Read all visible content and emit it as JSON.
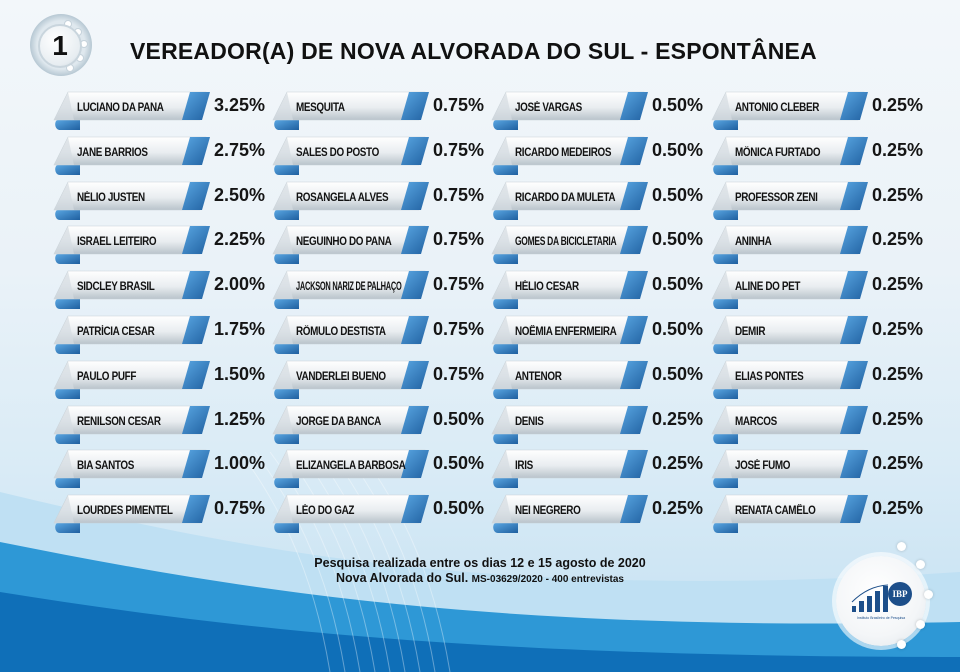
{
  "header": {
    "badge_number": "1",
    "title": "VEREADOR(A) DE NOVA ALVORADA DO SUL - ESPONTÂNEA"
  },
  "columns": [
    [
      {
        "name": "LUCIANO DA PANA",
        "pct": "3.25%"
      },
      {
        "name": "JANE BARRIOS",
        "pct": "2.75%"
      },
      {
        "name": "NÉLIO JUSTEN",
        "pct": "2.50%"
      },
      {
        "name": "ISRAEL LEITEIRO",
        "pct": "2.25%"
      },
      {
        "name": "SIDCLEY BRASIL",
        "pct": "2.00%"
      },
      {
        "name": "PATRÍCIA CESAR",
        "pct": "1.75%"
      },
      {
        "name": "PAULO PUFF",
        "pct": "1.50%"
      },
      {
        "name": "RENILSON CESAR",
        "pct": "1.25%"
      },
      {
        "name": "BIA SANTOS",
        "pct": "1.00%"
      },
      {
        "name": "LOURDES PIMENTEL",
        "pct": "0.75%"
      }
    ],
    [
      {
        "name": "MESQUITA",
        "pct": "0.75%"
      },
      {
        "name": "SALES DO POSTO",
        "pct": "0.75%"
      },
      {
        "name": "ROSANGELA ALVES",
        "pct": "0.75%"
      },
      {
        "name": "NEGUINHO DO PANA",
        "pct": "0.75%"
      },
      {
        "name": "JACKSON NARIZ DE PALHAÇO",
        "pct": "0.75%"
      },
      {
        "name": "RÔMULO DESTISTA",
        "pct": "0.75%"
      },
      {
        "name": "VANDERLEI BUENO",
        "pct": "0.75%"
      },
      {
        "name": "JORGE DA BANCA",
        "pct": "0.50%"
      },
      {
        "name": "ELIZANGELA BARBOSA",
        "pct": "0.50%"
      },
      {
        "name": "LÉO DO GAZ",
        "pct": "0.50%"
      }
    ],
    [
      {
        "name": "JOSÉ VARGAS",
        "pct": "0.50%"
      },
      {
        "name": "RICARDO MEDEIROS",
        "pct": "0.50%"
      },
      {
        "name": "RICARDO DA MULETA",
        "pct": "0.50%"
      },
      {
        "name": "GOMES DA BICICLETARIA",
        "pct": "0.50%"
      },
      {
        "name": "HÉLIO CESAR",
        "pct": "0.50%"
      },
      {
        "name": "NOÊMIA ENFERMEIRA",
        "pct": "0.50%"
      },
      {
        "name": "ANTENOR",
        "pct": "0.50%"
      },
      {
        "name": "DENIS",
        "pct": "0.25%"
      },
      {
        "name": "IRIS",
        "pct": "0.25%"
      },
      {
        "name": "NEI NEGRERO",
        "pct": "0.25%"
      }
    ],
    [
      {
        "name": "ANTONIO CLEBER",
        "pct": "0.25%"
      },
      {
        "name": "MÔNICA FURTADO",
        "pct": "0.25%"
      },
      {
        "name": "PROFESSOR ZENI",
        "pct": "0.25%"
      },
      {
        "name": "ANINHA",
        "pct": "0.25%"
      },
      {
        "name": "ALINE DO PET",
        "pct": "0.25%"
      },
      {
        "name": "DEMIR",
        "pct": "0.25%"
      },
      {
        "name": "ELIAS PONTES",
        "pct": "0.25%"
      },
      {
        "name": "MARCOS",
        "pct": "0.25%"
      },
      {
        "name": "JOSÉ FUMO",
        "pct": "0.25%"
      },
      {
        "name": "RENATA CAMÊLO",
        "pct": "0.25%"
      }
    ]
  ],
  "footer": {
    "line1": "Pesquisa realizada entre os dias 12 e 15 agosto de 2020",
    "line2_main": "Nova Alvorada do Sul.",
    "line2_small": "MS-03629/2020 - 400 entrevistas"
  },
  "logo": {
    "abbr": "IBP",
    "subtitle": "Instituto Brasileiro de Pesquisa"
  },
  "colors": {
    "ribbon_accent": "#2f7fc8",
    "background_blue": "#1a86cc",
    "text": "#111111"
  },
  "chart_data": {
    "type": "table",
    "title": "VEREADOR(A) DE NOVA ALVORADA DO SUL - ESPONTÂNEA",
    "categories": [
      "LUCIANO DA PANA",
      "JANE BARRIOS",
      "NÉLIO JUSTEN",
      "ISRAEL LEITEIRO",
      "SIDCLEY BRASIL",
      "PATRÍCIA CESAR",
      "PAULO PUFF",
      "RENILSON CESAR",
      "BIA SANTOS",
      "LOURDES PIMENTEL",
      "MESQUITA",
      "SALES DO POSTO",
      "ROSANGELA ALVES",
      "NEGUINHO DO PANA",
      "JACKSON NARIZ DE PALHAÇO",
      "RÔMULO DESTISTA",
      "VANDERLEI BUENO",
      "JORGE DA BANCA",
      "ELIZANGELA BARBOSA",
      "LÉO DO GAZ",
      "JOSÉ VARGAS",
      "RICARDO MEDEIROS",
      "RICARDO DA MULETA",
      "GOMES DA BICICLETARIA",
      "HÉLIO CESAR",
      "NOÊMIA ENFERMEIRA",
      "ANTENOR",
      "DENIS",
      "IRIS",
      "NEI NEGRERO",
      "ANTONIO CLEBER",
      "MÔNICA FURTADO",
      "PROFESSOR ZENI",
      "ANINHA",
      "ALINE DO PET",
      "DEMIR",
      "ELIAS PONTES",
      "MARCOS",
      "JOSÉ FUMO",
      "RENATA CAMÊLO"
    ],
    "values": [
      3.25,
      2.75,
      2.5,
      2.25,
      2.0,
      1.75,
      1.5,
      1.25,
      1.0,
      0.75,
      0.75,
      0.75,
      0.75,
      0.75,
      0.75,
      0.75,
      0.75,
      0.5,
      0.5,
      0.5,
      0.5,
      0.5,
      0.5,
      0.5,
      0.5,
      0.5,
      0.5,
      0.25,
      0.25,
      0.25,
      0.25,
      0.25,
      0.25,
      0.25,
      0.25,
      0.25,
      0.25,
      0.25,
      0.25,
      0.25
    ],
    "unit": "%",
    "note": "Pesquisa realizada entre os dias 12 e 15 agosto de 2020 - Nova Alvorada do Sul. MS-03629/2020 - 400 entrevistas"
  }
}
